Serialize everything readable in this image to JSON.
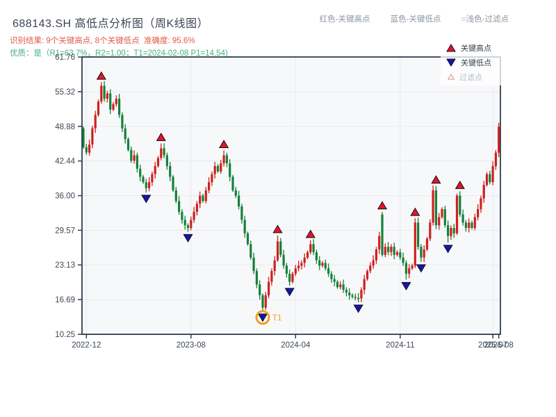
{
  "header": {
    "title": "688143.SH 高低点分析图（周K线图）",
    "subtitle_result": "识别结果: 9个关键高点, 8个关键低点  准确度: 95.6%",
    "subtitle_quality": "优质：是（R1=63.7%，R2=1.00；T1=2024-02-08 P1=14.54)",
    "legend_inline": [
      "红色-关键高点",
      "蓝色-关键低点",
      "○浅色-过滤点"
    ]
  },
  "legend_box": {
    "items": [
      {
        "label": "关键高点",
        "type": "key-high"
      },
      {
        "label": "关键低点",
        "type": "key-low"
      },
      {
        "label": "过滤点",
        "type": "filtered"
      }
    ]
  },
  "chart_data": {
    "type": "candlestick",
    "symbol": "688143.SH",
    "timeframe": "weekly",
    "title": "688143.SH 高低点分析图（周K线图）",
    "grid": true,
    "ylim": [
      10.25,
      61.76
    ],
    "y_tick_labels": [
      "61.76",
      "55.32",
      "48.88",
      "42.44",
      "36.00",
      "29.57",
      "23.13",
      "16.69",
      "10.25"
    ],
    "x_ticks": [
      {
        "label": "2022-12",
        "week": 1
      },
      {
        "label": "2023-08",
        "week": 36
      },
      {
        "label": "2024-04",
        "week": 71
      },
      {
        "label": "2024-11",
        "week": 106
      },
      {
        "label": "2025-07",
        "week": 137
      },
      {
        "label": "2025-08",
        "week": 139
      }
    ],
    "first_open": 48.5,
    "closes": [
      45.0,
      44.0,
      45.5,
      48.5,
      51.0,
      53.5,
      56.4,
      54.0,
      55.0,
      52.0,
      53.0,
      54.0,
      51.0,
      48.5,
      46.5,
      44.5,
      42.5,
      43.5,
      41.0,
      39.5,
      38.5,
      37.4,
      38.5,
      40.0,
      41.5,
      43.0,
      44.8,
      43.5,
      41.5,
      39.5,
      37.0,
      35.0,
      33.0,
      31.5,
      30.5,
      30.0,
      31.5,
      33.0,
      34.5,
      36.0,
      35.0,
      37.0,
      38.5,
      40.0,
      41.5,
      40.5,
      42.0,
      43.5,
      42.0,
      39.5,
      37.0,
      36.0,
      34.0,
      31.5,
      29.0,
      27.0,
      24.5,
      22.0,
      19.5,
      17.5,
      15.2,
      17.5,
      20.0,
      22.0,
      24.0,
      27.5,
      25.0,
      23.0,
      21.5,
      20.0,
      21.5,
      22.5,
      23.0,
      23.5,
      24.5,
      25.5,
      27.0,
      25.5,
      24.0,
      23.0,
      23.5,
      22.5,
      21.5,
      20.5,
      20.0,
      19.0,
      19.5,
      18.5,
      18.0,
      17.5,
      17.2,
      17.0,
      16.9,
      18.5,
      20.5,
      22.0,
      23.0,
      24.0,
      26.0,
      28.5,
      25.0,
      26.5,
      25.5,
      26.5,
      25.0,
      25.5,
      24.5,
      23.5,
      21.5,
      22.5,
      23.0,
      31.0,
      26.5,
      24.5,
      26.0,
      28.0,
      31.0,
      37.0,
      30.5,
      32.0,
      33.5,
      30.5,
      28.5,
      30.0,
      29.0,
      36.0,
      32.5,
      31.0,
      30.0,
      31.0,
      30.0,
      32.0,
      33.5,
      35.5,
      38.0,
      40.0,
      38.5,
      41.5,
      44.0,
      48.8
    ],
    "open_overrides": {
      "100": 32.5
    },
    "key_highs": [
      {
        "week": 6,
        "price": 57.1
      },
      {
        "week": 26,
        "price": 45.7
      },
      {
        "week": 47,
        "price": 44.4
      },
      {
        "week": 65,
        "price": 28.6
      },
      {
        "week": 76,
        "price": 27.7
      },
      {
        "week": 100,
        "price": 33.0
      },
      {
        "week": 111,
        "price": 31.8
      },
      {
        "week": 118,
        "price": 37.8
      },
      {
        "week": 126,
        "price": 36.8
      }
    ],
    "key_lows": [
      {
        "week": 21,
        "price": 36.6
      },
      {
        "week": 35,
        "price": 29.3
      },
      {
        "week": 60,
        "price": 14.54,
        "label": "T1",
        "date": "2024-02-08",
        "annotated": true
      },
      {
        "week": 69,
        "price": 19.3
      },
      {
        "week": 92,
        "price": 16.2
      },
      {
        "week": 108,
        "price": 20.4
      },
      {
        "week": 113,
        "price": 23.7
      },
      {
        "week": 122,
        "price": 27.3
      }
    ],
    "stats": {
      "key_high_count": 9,
      "key_low_count": 8,
      "accuracy": "95.6%",
      "r1": "63.7%",
      "r2": "1.00",
      "t1_date": "2024-02-08",
      "p1": 14.54
    },
    "colors": {
      "up": "#cf201d",
      "down": "#158139",
      "key_high_marker": "#e8112d",
      "key_low_marker": "#1414b8",
      "marker_edge": "#111111",
      "annotation": "#f0a020",
      "axis": "#2f3d4f",
      "tick_label": "#3c4858",
      "grid": "#e8eaef",
      "plot_bg": "#f7f8fa"
    }
  }
}
